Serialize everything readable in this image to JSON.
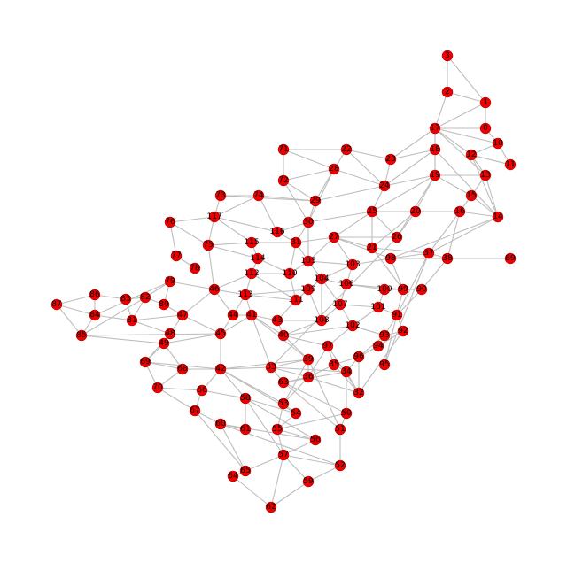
{
  "colors": {
    "node": "#ee0000",
    "edge": "#bdbdbd",
    "label": "#000000"
  },
  "nodes": [
    {
      "id": "0"
    },
    {
      "id": "1"
    },
    {
      "id": "2"
    },
    {
      "id": "3"
    },
    {
      "id": "10"
    },
    {
      "id": "11"
    },
    {
      "id": "12"
    },
    {
      "id": "13"
    },
    {
      "id": "14"
    },
    {
      "id": "15"
    },
    {
      "id": "16"
    },
    {
      "id": "17"
    },
    {
      "id": "18"
    },
    {
      "id": "19"
    },
    {
      "id": "20"
    },
    {
      "id": "21"
    },
    {
      "id": "22"
    },
    {
      "id": "23"
    },
    {
      "id": "24"
    },
    {
      "id": "25"
    },
    {
      "id": "26"
    },
    {
      "id": "27"
    },
    {
      "id": "28"
    },
    {
      "id": "29"
    },
    {
      "id": "30"
    },
    {
      "id": "31"
    },
    {
      "id": "32"
    },
    {
      "id": "33"
    },
    {
      "id": "34"
    },
    {
      "id": "35"
    },
    {
      "id": "36"
    },
    {
      "id": "37"
    },
    {
      "id": "38"
    },
    {
      "id": "39"
    },
    {
      "id": "40"
    },
    {
      "id": "41"
    },
    {
      "id": "42"
    },
    {
      "id": "43"
    },
    {
      "id": "44"
    },
    {
      "id": "45"
    },
    {
      "id": "46"
    },
    {
      "id": "47"
    },
    {
      "id": "48"
    },
    {
      "id": "49"
    },
    {
      "id": "50"
    },
    {
      "id": "51"
    },
    {
      "id": "52"
    },
    {
      "id": "53"
    },
    {
      "id": "54"
    },
    {
      "id": "55"
    },
    {
      "id": "56"
    },
    {
      "id": "57"
    },
    {
      "id": "58"
    },
    {
      "id": "59"
    },
    {
      "id": "60"
    },
    {
      "id": "61"
    },
    {
      "id": "62"
    },
    {
      "id": "63"
    },
    {
      "id": "64"
    },
    {
      "id": "65"
    },
    {
      "id": "66"
    },
    {
      "id": "67"
    },
    {
      "id": "68"
    },
    {
      "id": "69"
    },
    {
      "id": "70"
    },
    {
      "id": "71"
    },
    {
      "id": "72"
    },
    {
      "id": "73"
    },
    {
      "id": "74"
    },
    {
      "id": "75"
    },
    {
      "id": "76"
    },
    {
      "id": "77"
    },
    {
      "id": "78"
    },
    {
      "id": "79"
    },
    {
      "id": "80"
    },
    {
      "id": "81"
    },
    {
      "id": "82"
    },
    {
      "id": "83"
    },
    {
      "id": "84"
    },
    {
      "id": "85"
    },
    {
      "id": "86"
    },
    {
      "id": "87"
    },
    {
      "id": "88"
    },
    {
      "id": "89"
    },
    {
      "id": "90"
    },
    {
      "id": "91"
    },
    {
      "id": "92"
    },
    {
      "id": "93"
    },
    {
      "id": "94"
    },
    {
      "id": "95"
    },
    {
      "id": "96"
    },
    {
      "id": "97"
    },
    {
      "id": "98"
    },
    {
      "id": "99"
    },
    {
      "id": "100"
    },
    {
      "id": "101"
    },
    {
      "id": "102"
    },
    {
      "id": "103"
    },
    {
      "id": "104"
    },
    {
      "id": "105"
    },
    {
      "id": "106"
    },
    {
      "id": "107"
    },
    {
      "id": "108"
    },
    {
      "id": "109"
    },
    {
      "id": "110"
    },
    {
      "id": "111"
    },
    {
      "id": "112"
    },
    {
      "id": "113"
    },
    {
      "id": "114"
    },
    {
      "id": "115"
    },
    {
      "id": "116"
    },
    {
      "id": "117"
    }
  ],
  "edges": [
    [
      "3",
      "2"
    ],
    [
      "3",
      "1"
    ],
    [
      "2",
      "1"
    ],
    [
      "2",
      "17"
    ],
    [
      "1",
      "0"
    ],
    [
      "1",
      "17"
    ],
    [
      "0",
      "17"
    ],
    [
      "0",
      "10"
    ],
    [
      "10",
      "11"
    ],
    [
      "10",
      "17"
    ],
    [
      "17",
      "12"
    ],
    [
      "17",
      "13"
    ],
    [
      "17",
      "18"
    ],
    [
      "17",
      "23"
    ],
    [
      "17",
      "19"
    ],
    [
      "12",
      "11"
    ],
    [
      "12",
      "10"
    ],
    [
      "12",
      "13"
    ],
    [
      "12",
      "14"
    ],
    [
      "13",
      "14"
    ],
    [
      "13",
      "19"
    ],
    [
      "13",
      "15"
    ],
    [
      "11",
      "12"
    ],
    [
      "19",
      "18"
    ],
    [
      "19",
      "15"
    ],
    [
      "19",
      "26"
    ],
    [
      "19",
      "24"
    ],
    [
      "19",
      "20"
    ],
    [
      "19",
      "25"
    ],
    [
      "18",
      "24"
    ],
    [
      "18",
      "23"
    ],
    [
      "18",
      "14"
    ],
    [
      "15",
      "14"
    ],
    [
      "15",
      "16"
    ],
    [
      "16",
      "14"
    ],
    [
      "16",
      "20"
    ],
    [
      "16",
      "37"
    ],
    [
      "16",
      "38"
    ],
    [
      "14",
      "37"
    ],
    [
      "14",
      "98"
    ],
    [
      "23",
      "22"
    ],
    [
      "23",
      "24"
    ],
    [
      "22",
      "28"
    ],
    [
      "22",
      "71"
    ],
    [
      "22",
      "24"
    ],
    [
      "71",
      "72"
    ],
    [
      "71",
      "28"
    ],
    [
      "72",
      "28"
    ],
    [
      "72",
      "29"
    ],
    [
      "72",
      "30"
    ],
    [
      "28",
      "24"
    ],
    [
      "28",
      "29"
    ],
    [
      "28",
      "30"
    ],
    [
      "24",
      "25"
    ],
    [
      "24",
      "29"
    ],
    [
      "25",
      "20"
    ],
    [
      "25",
      "21"
    ],
    [
      "25",
      "26"
    ],
    [
      "25",
      "30"
    ],
    [
      "25",
      "27"
    ],
    [
      "20",
      "26"
    ],
    [
      "20",
      "21"
    ],
    [
      "26",
      "27"
    ],
    [
      "26",
      "33"
    ],
    [
      "21",
      "27"
    ],
    [
      "21",
      "37"
    ],
    [
      "21",
      "99"
    ],
    [
      "37",
      "38"
    ],
    [
      "37",
      "98"
    ],
    [
      "37",
      "91"
    ],
    [
      "37",
      "95"
    ],
    [
      "38",
      "89"
    ],
    [
      "38",
      "98"
    ],
    [
      "98",
      "99"
    ],
    [
      "98",
      "27"
    ],
    [
      "27",
      "31"
    ],
    [
      "27",
      "103"
    ],
    [
      "27",
      "105"
    ],
    [
      "29",
      "30"
    ],
    [
      "29",
      "73"
    ],
    [
      "30",
      "116"
    ],
    [
      "30",
      "31"
    ],
    [
      "30",
      "105"
    ],
    [
      "31",
      "115"
    ],
    [
      "31",
      "116"
    ],
    [
      "31",
      "110"
    ],
    [
      "31",
      "105"
    ],
    [
      "73",
      "74"
    ],
    [
      "73",
      "117"
    ],
    [
      "74",
      "117"
    ],
    [
      "74",
      "116"
    ],
    [
      "74",
      "29"
    ],
    [
      "117",
      "116"
    ],
    [
      "117",
      "76"
    ],
    [
      "117",
      "75"
    ],
    [
      "117",
      "115"
    ],
    [
      "76",
      "77"
    ],
    [
      "76",
      "75"
    ],
    [
      "77",
      "78"
    ],
    [
      "75",
      "115"
    ],
    [
      "75",
      "114"
    ],
    [
      "75",
      "46"
    ],
    [
      "115",
      "114"
    ],
    [
      "114",
      "112"
    ],
    [
      "114",
      "110"
    ],
    [
      "112",
      "110"
    ],
    [
      "112",
      "113"
    ],
    [
      "112",
      "111"
    ],
    [
      "112",
      "46"
    ],
    [
      "110",
      "111"
    ],
    [
      "110",
      "105"
    ],
    [
      "105",
      "104"
    ],
    [
      "105",
      "103"
    ],
    [
      "104",
      "103"
    ],
    [
      "104",
      "106"
    ],
    [
      "104",
      "107"
    ],
    [
      "104",
      "109"
    ],
    [
      "104",
      "108"
    ],
    [
      "104",
      "111"
    ],
    [
      "103",
      "106"
    ],
    [
      "103",
      "98"
    ],
    [
      "106",
      "100"
    ],
    [
      "106",
      "107"
    ],
    [
      "106",
      "99"
    ],
    [
      "100",
      "99"
    ],
    [
      "100",
      "101"
    ],
    [
      "99",
      "90"
    ],
    [
      "99",
      "95"
    ],
    [
      "90",
      "38"
    ],
    [
      "90",
      "91"
    ],
    [
      "101",
      "91"
    ],
    [
      "101",
      "107"
    ],
    [
      "101",
      "102"
    ],
    [
      "107",
      "108"
    ],
    [
      "107",
      "102"
    ],
    [
      "108",
      "109"
    ],
    [
      "108",
      "40"
    ],
    [
      "109",
      "111"
    ],
    [
      "109",
      "113"
    ],
    [
      "111",
      "113"
    ],
    [
      "111",
      "43"
    ],
    [
      "113",
      "46"
    ],
    [
      "113",
      "44"
    ],
    [
      "113",
      "41"
    ],
    [
      "46",
      "79"
    ],
    [
      "46",
      "47"
    ],
    [
      "46",
      "44"
    ],
    [
      "79",
      "80"
    ],
    [
      "79",
      "82"
    ],
    [
      "79",
      "84"
    ],
    [
      "80",
      "82"
    ],
    [
      "80",
      "47"
    ],
    [
      "82",
      "83"
    ],
    [
      "82",
      "81"
    ],
    [
      "82",
      "85"
    ],
    [
      "83",
      "86"
    ],
    [
      "83",
      "81"
    ],
    [
      "86",
      "87"
    ],
    [
      "86",
      "84"
    ],
    [
      "87",
      "84"
    ],
    [
      "87",
      "85"
    ],
    [
      "84",
      "81"
    ],
    [
      "84",
      "85"
    ],
    [
      "85",
      "49"
    ],
    [
      "85",
      "45"
    ],
    [
      "81",
      "47"
    ],
    [
      "81",
      "48"
    ],
    [
      "47",
      "48"
    ],
    [
      "47",
      "45"
    ],
    [
      "48",
      "49"
    ],
    [
      "48",
      "69"
    ],
    [
      "49",
      "69"
    ],
    [
      "49",
      "68"
    ],
    [
      "49",
      "45"
    ],
    [
      "45",
      "44"
    ],
    [
      "45",
      "42"
    ],
    [
      "45",
      "41"
    ],
    [
      "44",
      "41"
    ],
    [
      "41",
      "43"
    ],
    [
      "41",
      "40"
    ],
    [
      "41",
      "39"
    ],
    [
      "41",
      "33"
    ],
    [
      "43",
      "40"
    ],
    [
      "43",
      "108"
    ],
    [
      "40",
      "102"
    ],
    [
      "40",
      "97"
    ],
    [
      "40",
      "39"
    ],
    [
      "102",
      "97"
    ],
    [
      "102",
      "93"
    ],
    [
      "93",
      "94"
    ],
    [
      "93",
      "92"
    ],
    [
      "93",
      "96"
    ],
    [
      "94",
      "91"
    ],
    [
      "94",
      "96"
    ],
    [
      "94",
      "92"
    ],
    [
      "92",
      "91"
    ],
    [
      "92",
      "32"
    ],
    [
      "96",
      "32"
    ],
    [
      "96",
      "34"
    ],
    [
      "96",
      "35"
    ],
    [
      "97",
      "32"
    ],
    [
      "97",
      "35"
    ],
    [
      "97",
      "36"
    ],
    [
      "32",
      "35"
    ],
    [
      "32",
      "34"
    ],
    [
      "32",
      "36"
    ],
    [
      "35",
      "34"
    ],
    [
      "35",
      "36"
    ],
    [
      "34",
      "33"
    ],
    [
      "34",
      "50"
    ],
    [
      "34",
      "63"
    ],
    [
      "36",
      "33"
    ],
    [
      "36",
      "63"
    ],
    [
      "36",
      "39"
    ],
    [
      "39",
      "33"
    ],
    [
      "39",
      "42"
    ],
    [
      "39",
      "51"
    ],
    [
      "39",
      "53"
    ],
    [
      "33",
      "42"
    ],
    [
      "33",
      "63"
    ],
    [
      "63",
      "50"
    ],
    [
      "63",
      "51"
    ],
    [
      "50",
      "51"
    ],
    [
      "42",
      "68"
    ],
    [
      "42",
      "66"
    ],
    [
      "42",
      "58"
    ],
    [
      "42",
      "53"
    ],
    [
      "42",
      "54"
    ],
    [
      "42",
      "69"
    ],
    [
      "68",
      "69"
    ],
    [
      "68",
      "70"
    ],
    [
      "69",
      "70"
    ],
    [
      "70",
      "66"
    ],
    [
      "70",
      "67"
    ],
    [
      "66",
      "67"
    ],
    [
      "66",
      "58"
    ],
    [
      "67",
      "60"
    ],
    [
      "67",
      "65"
    ],
    [
      "60",
      "65"
    ],
    [
      "60",
      "61"
    ],
    [
      "61",
      "58"
    ],
    [
      "58",
      "54"
    ],
    [
      "58",
      "56"
    ],
    [
      "53",
      "54"
    ],
    [
      "53",
      "55"
    ],
    [
      "54",
      "55"
    ],
    [
      "55",
      "56"
    ],
    [
      "55",
      "57"
    ],
    [
      "56",
      "57"
    ],
    [
      "56",
      "60"
    ],
    [
      "57",
      "52"
    ],
    [
      "57",
      "58"
    ],
    [
      "57",
      "59"
    ],
    [
      "57",
      "62"
    ],
    [
      "52",
      "59"
    ],
    [
      "52",
      "60"
    ],
    [
      "59",
      "62"
    ],
    [
      "62",
      "64"
    ],
    [
      "64",
      "57"
    ],
    [
      "51",
      "52"
    ],
    [
      "50",
      "55"
    ],
    [
      "36",
      "53"
    ],
    [
      "93",
      "102"
    ]
  ]
}
